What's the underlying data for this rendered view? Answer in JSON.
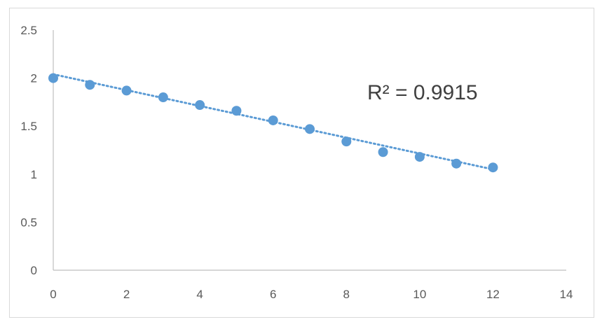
{
  "chart_data": {
    "type": "scatter",
    "title": "",
    "xlabel": "",
    "ylabel": "",
    "xlim": [
      0,
      14
    ],
    "ylim": [
      0,
      2.5
    ],
    "x_ticks": [
      0,
      2,
      4,
      6,
      8,
      10,
      12,
      14
    ],
    "y_ticks": [
      0,
      0.5,
      1,
      1.5,
      2,
      2.5
    ],
    "x_tick_labels": [
      "0",
      "2",
      "4",
      "6",
      "8",
      "10",
      "12",
      "14"
    ],
    "y_tick_labels": [
      "0",
      "0.5",
      "1",
      "1.5",
      "2",
      "2.5"
    ],
    "grid": false,
    "legend": "none",
    "series": [
      {
        "x": [
          0,
          1,
          2,
          3,
          4,
          5,
          6,
          7,
          8,
          9,
          10,
          11,
          12
        ],
        "y": [
          2.0,
          1.93,
          1.87,
          1.8,
          1.72,
          1.66,
          1.56,
          1.47,
          1.34,
          1.23,
          1.18,
          1.11,
          1.07
        ],
        "color": "#5B9BD5"
      }
    ],
    "trendline": {
      "type": "linear",
      "from": [
        0,
        2.04
      ],
      "to": [
        12,
        1.05
      ],
      "style": "dotted",
      "color": "#5B9BD5"
    },
    "annotation": "R² = 0.9915",
    "axis_color": "#BFBFBF"
  }
}
